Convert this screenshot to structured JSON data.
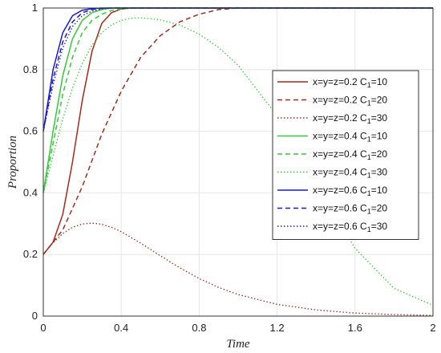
{
  "chart_data": {
    "type": "line",
    "title": "",
    "xlabel": "Time",
    "ylabel": "Proportion",
    "xlim": [
      0,
      2
    ],
    "ylim": [
      0,
      1
    ],
    "xticks": [
      0,
      0.4,
      0.8,
      1.2,
      1.6,
      2
    ],
    "xtick_labels": [
      "0",
      "0.4",
      "0.8",
      "1.2",
      "1.6",
      "2"
    ],
    "yticks": [
      0,
      0.2,
      0.4,
      0.6,
      0.8,
      1
    ],
    "ytick_labels": [
      "0",
      "0.2",
      "0.4",
      "0.6",
      "0.8",
      "1"
    ],
    "grid": true,
    "legend_position": "right",
    "series": [
      {
        "name": "x=y=z=0.2 C1=10",
        "label_main": "x=y=z=0.2 C",
        "label_sub": "1",
        "label_tail": "=10",
        "color": "#a52a1a",
        "style": "solid",
        "x": [
          0,
          0.05,
          0.1,
          0.15,
          0.2,
          0.25,
          0.3,
          0.35,
          0.4,
          0.45,
          0.5,
          2
        ],
        "y": [
          0.2,
          0.24,
          0.33,
          0.5,
          0.7,
          0.86,
          0.95,
          0.985,
          0.997,
          1.0,
          1.0,
          1.0
        ]
      },
      {
        "name": "x=y=z=0.2 C1=20",
        "label_main": "x=y=z=0.2 C",
        "label_sub": "1",
        "label_tail": "=20",
        "color": "#a52a1a",
        "style": "dashed",
        "x": [
          0,
          0.1,
          0.2,
          0.3,
          0.4,
          0.5,
          0.6,
          0.7,
          0.8,
          0.9,
          1.0,
          2
        ],
        "y": [
          0.2,
          0.28,
          0.42,
          0.59,
          0.73,
          0.84,
          0.91,
          0.955,
          0.98,
          0.995,
          1.0,
          1.0
        ]
      },
      {
        "name": "x=y=z=0.2 C1=30",
        "label_main": "x=y=z=0.2 C",
        "label_sub": "1",
        "label_tail": "=30",
        "color": "#a52a1a",
        "style": "dotted",
        "x": [
          0,
          0.05,
          0.1,
          0.15,
          0.2,
          0.25,
          0.3,
          0.35,
          0.4,
          0.5,
          0.6,
          0.7,
          0.8,
          0.9,
          1.0,
          1.2,
          1.4,
          1.6,
          1.8,
          2.0
        ],
        "y": [
          0.2,
          0.238,
          0.268,
          0.288,
          0.299,
          0.302,
          0.298,
          0.288,
          0.274,
          0.237,
          0.196,
          0.157,
          0.122,
          0.093,
          0.07,
          0.038,
          0.02,
          0.01,
          0.005,
          0.002
        ]
      },
      {
        "name": "x=y=z=0.4 C1=10",
        "label_main": "x=y=z=0.4 C",
        "label_sub": "1",
        "label_tail": "=10",
        "color": "#33cc33",
        "style": "solid",
        "x": [
          0,
          0.05,
          0.1,
          0.15,
          0.2,
          0.25,
          0.3,
          0.35,
          0.4,
          2
        ],
        "y": [
          0.4,
          0.6,
          0.78,
          0.9,
          0.96,
          0.985,
          0.995,
          1.0,
          1.0,
          1.0
        ]
      },
      {
        "name": "x=y=z=0.4 C1=20",
        "label_main": "x=y=z=0.4 C",
        "label_sub": "1",
        "label_tail": "=20",
        "color": "#33cc33",
        "style": "dashed",
        "x": [
          0,
          0.05,
          0.1,
          0.15,
          0.2,
          0.25,
          0.3,
          0.35,
          0.4,
          0.45,
          0.5,
          2
        ],
        "y": [
          0.4,
          0.56,
          0.72,
          0.84,
          0.92,
          0.96,
          0.98,
          0.992,
          0.997,
          1.0,
          1.0,
          1.0
        ]
      },
      {
        "name": "x=y=z=0.4 C1=30",
        "label_main": "x=y=z=0.4 C",
        "label_sub": "1",
        "label_tail": "=30",
        "color": "#33cc33",
        "style": "dotted",
        "x": [
          0,
          0.05,
          0.1,
          0.15,
          0.2,
          0.25,
          0.3,
          0.35,
          0.4,
          0.45,
          0.5,
          0.6,
          0.7,
          0.8,
          0.9,
          1.0,
          1.2,
          1.4,
          1.6,
          1.8,
          2.0
        ],
        "y": [
          0.4,
          0.52,
          0.64,
          0.74,
          0.82,
          0.88,
          0.92,
          0.945,
          0.96,
          0.967,
          0.968,
          0.962,
          0.945,
          0.915,
          0.872,
          0.814,
          0.65,
          0.43,
          0.22,
          0.09,
          0.035
        ]
      },
      {
        "name": "x=y=z=0.6 C1=10",
        "label_main": "x=y=z=0.6 C",
        "label_sub": "1",
        "label_tail": "=10",
        "color": "#1a1acc",
        "style": "solid",
        "x": [
          0,
          0.05,
          0.1,
          0.15,
          0.2,
          0.25,
          0.3,
          2
        ],
        "y": [
          0.6,
          0.8,
          0.92,
          0.975,
          0.993,
          0.998,
          1.0,
          1.0
        ]
      },
      {
        "name": "x=y=z=0.6 C1=20",
        "label_main": "x=y=z=0.6 C",
        "label_sub": "1",
        "label_tail": "=20",
        "color": "#1a1acc",
        "style": "dashed",
        "x": [
          0,
          0.05,
          0.1,
          0.15,
          0.2,
          0.25,
          0.3,
          0.35,
          2
        ],
        "y": [
          0.6,
          0.77,
          0.89,
          0.955,
          0.985,
          0.995,
          0.999,
          1.0,
          1.0
        ]
      },
      {
        "name": "x=y=z=0.6 C1=30",
        "label_main": "x=y=z=0.6 C",
        "label_sub": "1",
        "label_tail": "=30",
        "color": "#1a1acc",
        "style": "dotted",
        "x": [
          0,
          0.05,
          0.1,
          0.15,
          0.2,
          0.25,
          0.3,
          0.35,
          0.4,
          2
        ],
        "y": [
          0.6,
          0.75,
          0.87,
          0.94,
          0.975,
          0.99,
          0.997,
          1.0,
          1.0,
          1.0
        ]
      }
    ]
  }
}
